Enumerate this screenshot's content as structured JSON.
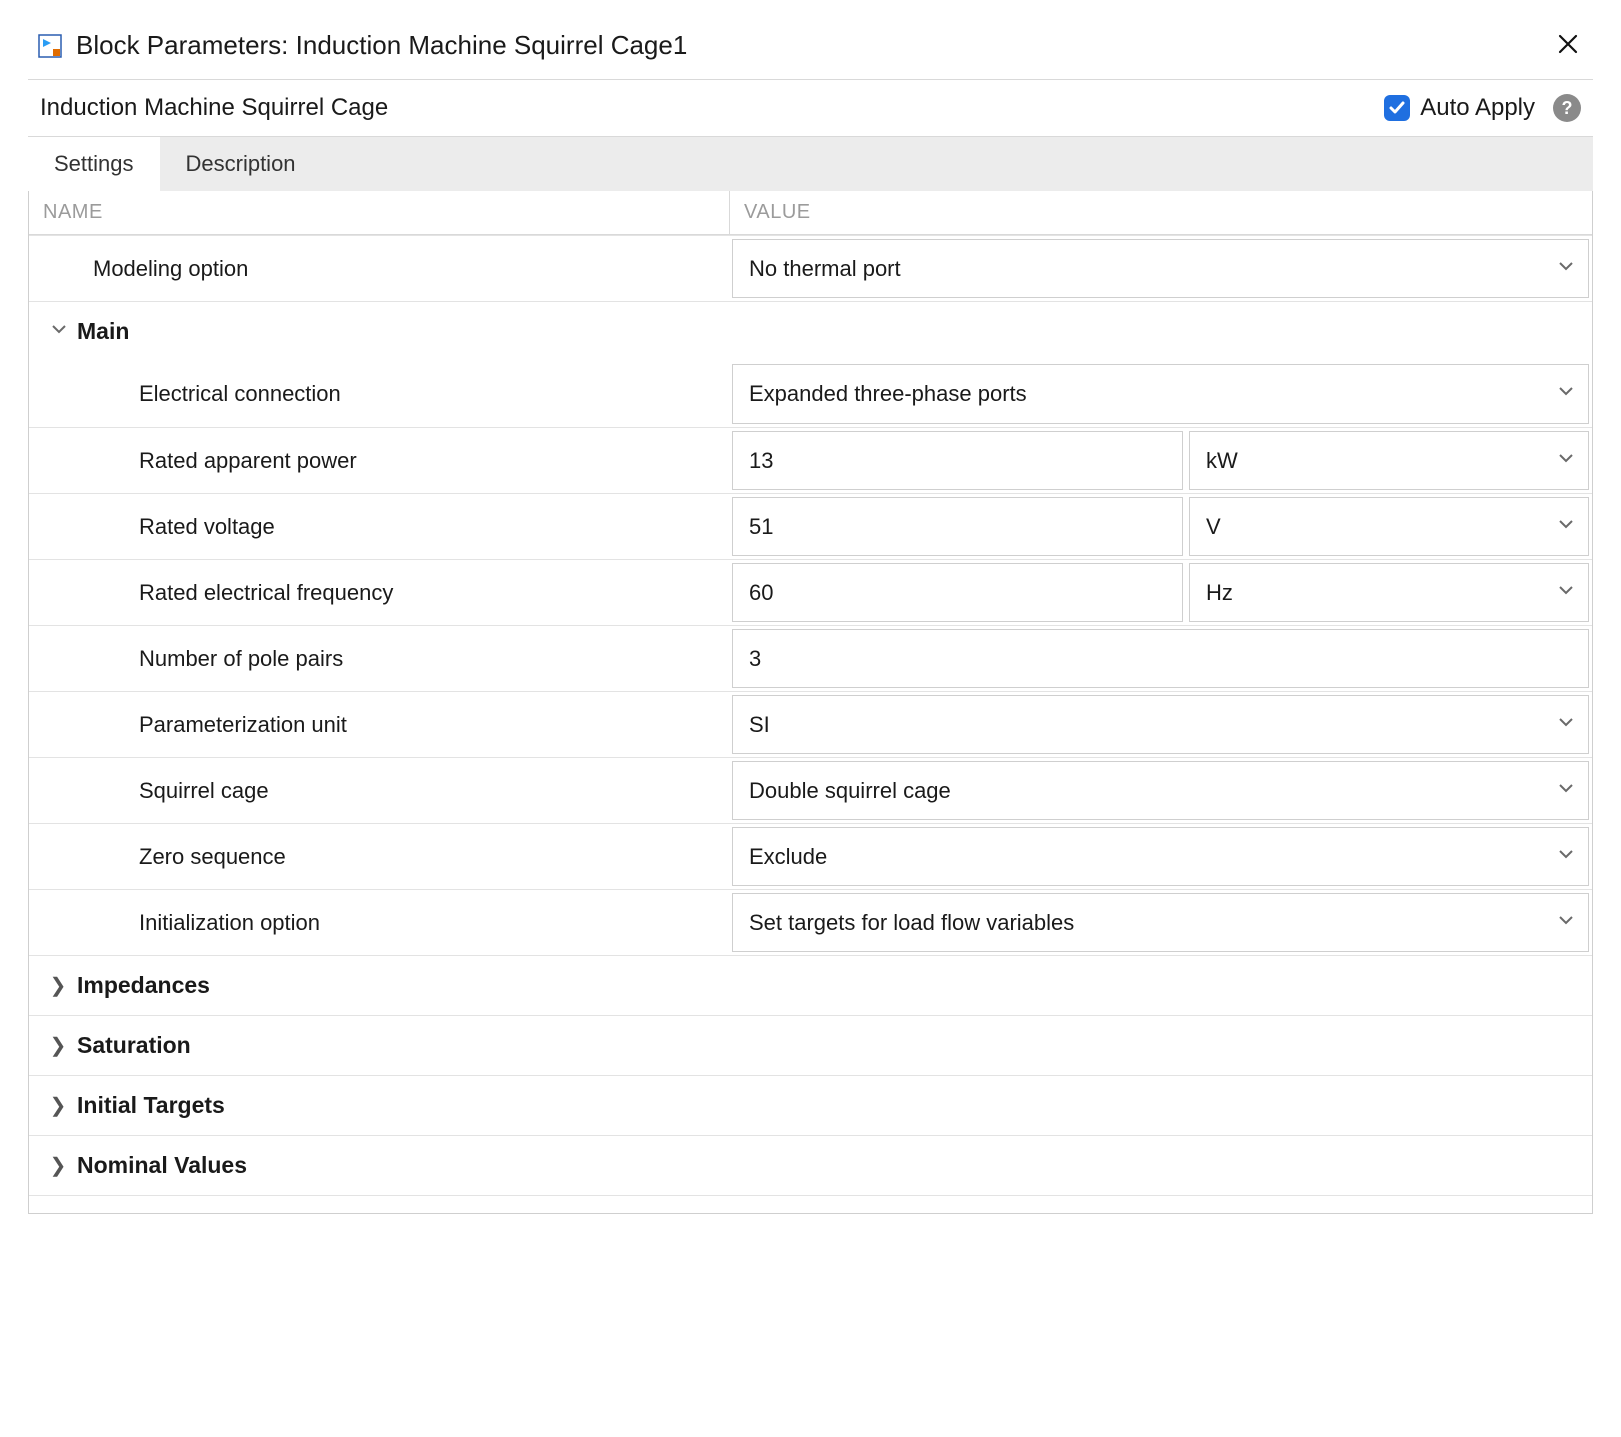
{
  "window": {
    "title": "Block Parameters: Induction Machine Squirrel Cage1"
  },
  "header": {
    "subtitle": "Induction Machine Squirrel Cage",
    "auto_apply_label": "Auto Apply",
    "auto_apply_checked": true
  },
  "tabs": {
    "items": [
      {
        "label": "Settings",
        "active": true
      },
      {
        "label": "Description",
        "active": false
      }
    ]
  },
  "columns": {
    "name": "NAME",
    "value": "VALUE"
  },
  "top_param": {
    "name": "Modeling option",
    "value": "No thermal port"
  },
  "sections": {
    "main": {
      "title": "Main",
      "expanded": true,
      "rows": [
        {
          "name": "Electrical connection",
          "kind": "select",
          "value": "Expanded three-phase ports"
        },
        {
          "name": "Rated apparent power",
          "kind": "number_unit",
          "value": "13",
          "unit": "kW"
        },
        {
          "name": "Rated voltage",
          "kind": "number_unit",
          "value": "51",
          "unit": "V"
        },
        {
          "name": "Rated electrical frequency",
          "kind": "number_unit",
          "value": "60",
          "unit": "Hz"
        },
        {
          "name": "Number of pole pairs",
          "kind": "number",
          "value": "3"
        },
        {
          "name": "Parameterization unit",
          "kind": "select",
          "value": "SI"
        },
        {
          "name": "Squirrel cage",
          "kind": "select",
          "value": "Double squirrel cage"
        },
        {
          "name": "Zero sequence",
          "kind": "select",
          "value": "Exclude"
        },
        {
          "name": "Initialization option",
          "kind": "select",
          "value": "Set targets for load flow variables"
        }
      ]
    },
    "impedances": {
      "title": "Impedances",
      "expanded": false
    },
    "saturation": {
      "title": "Saturation",
      "expanded": false
    },
    "initial_targets": {
      "title": "Initial Targets",
      "expanded": false
    },
    "nominal_values": {
      "title": "Nominal Values",
      "expanded": false
    }
  },
  "colors": {
    "accent": "#1f6fe0",
    "border": "#cfcfcf",
    "header_text": "#9b9b9b",
    "tab_bg": "#ececec"
  }
}
